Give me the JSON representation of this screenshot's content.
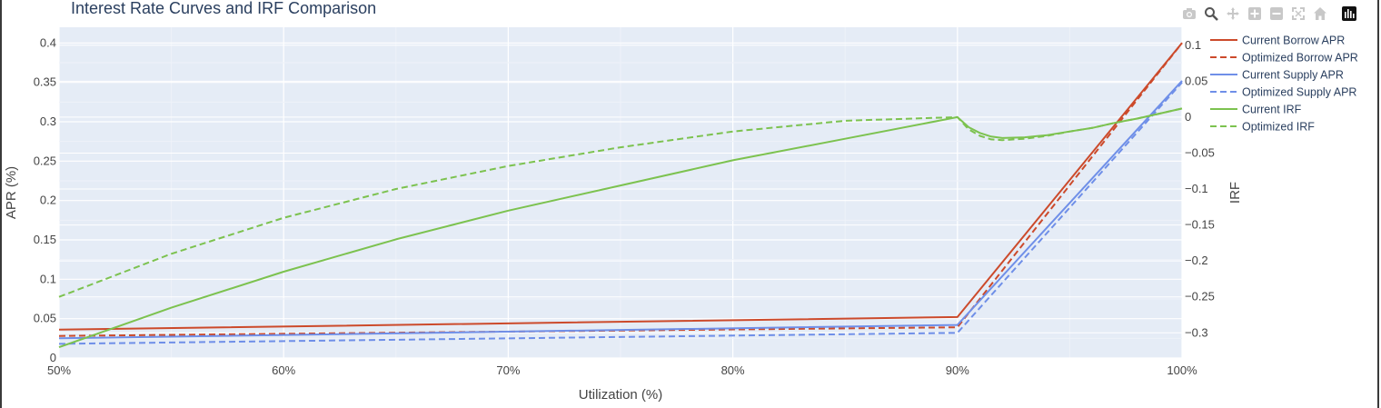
{
  "chart_data": {
    "type": "line",
    "title": "Interest Rate Curves and IRF Comparison",
    "xlabel": "Utilization (%)",
    "ylabel": "APR (%)",
    "y2label": "IRF",
    "xlim": [
      50,
      100
    ],
    "ylim": [
      0,
      0.42
    ],
    "y2lim": [
      -0.335,
      0.125
    ],
    "x_ticks": [
      50,
      60,
      70,
      80,
      90,
      100
    ],
    "x_tick_labels": [
      "50%",
      "60%",
      "70%",
      "80%",
      "90%",
      "100%"
    ],
    "y_ticks": [
      0,
      0.05,
      0.1,
      0.15,
      0.2,
      0.25,
      0.3,
      0.35,
      0.4
    ],
    "y_tick_labels": [
      "0",
      "0.05",
      "0.1",
      "0.15",
      "0.2",
      "0.25",
      "0.3",
      "0.35",
      "0.4"
    ],
    "y2_ticks": [
      0.1,
      0.05,
      0,
      -0.05,
      -0.1,
      -0.15,
      -0.2,
      -0.25,
      -0.3
    ],
    "y2_tick_labels": [
      "0.1",
      "0.05",
      "0",
      "−0.05",
      "−0.1",
      "−0.15",
      "−0.2",
      "−0.25",
      "−0.3"
    ],
    "grid": true,
    "legend_position": "right",
    "series": [
      {
        "name": "Current Borrow APR",
        "axis": "y",
        "color": "#cc4a2b",
        "dash": false,
        "x": [
          50,
          90,
          100
        ],
        "y": [
          0.036,
          0.052,
          0.4
        ]
      },
      {
        "name": "Optimized Borrow APR",
        "axis": "y",
        "color": "#cc4a2b",
        "dash": true,
        "x": [
          50,
          90,
          100
        ],
        "y": [
          0.028,
          0.039,
          0.4
        ]
      },
      {
        "name": "Current Supply APR",
        "axis": "y",
        "color": "#6f8fe8",
        "dash": false,
        "x": [
          50,
          90,
          100
        ],
        "y": [
          0.025,
          0.042,
          0.352
        ]
      },
      {
        "name": "Optimized Supply APR",
        "axis": "y",
        "color": "#6f8fe8",
        "dash": true,
        "x": [
          50,
          90,
          100
        ],
        "y": [
          0.018,
          0.032,
          0.35
        ]
      },
      {
        "name": "Current IRF",
        "axis": "y2",
        "color": "#7cc24f",
        "dash": false,
        "x": [
          50,
          55,
          60,
          65,
          70,
          75,
          80,
          85,
          90,
          90.5,
          91,
          91.5,
          92,
          93,
          94,
          95,
          96,
          97,
          98,
          99,
          100
        ],
        "y": [
          -0.32,
          -0.265,
          -0.215,
          -0.17,
          -0.13,
          -0.095,
          -0.06,
          -0.03,
          0.0,
          -0.014,
          -0.022,
          -0.027,
          -0.029,
          -0.028,
          -0.025,
          -0.02,
          -0.015,
          -0.008,
          -0.002,
          0.005,
          0.012
        ]
      },
      {
        "name": "Optimized IRF",
        "axis": "y2",
        "color": "#7cc24f",
        "dash": true,
        "x": [
          50,
          55,
          60,
          65,
          70,
          75,
          80,
          85,
          90,
          90.5,
          91,
          91.5,
          92,
          93,
          94,
          95,
          96,
          97,
          98,
          99,
          100
        ],
        "y": [
          -0.25,
          -0.19,
          -0.14,
          -0.1,
          -0.068,
          -0.042,
          -0.02,
          -0.005,
          0.0,
          -0.017,
          -0.026,
          -0.031,
          -0.032,
          -0.03,
          -0.026,
          -0.02,
          -0.015,
          -0.008,
          -0.002,
          0.005,
          0.012
        ]
      }
    ]
  },
  "modebar": {
    "icons": [
      "camera-icon",
      "zoom-icon",
      "pan-icon",
      "zoom-in-icon",
      "zoom-out-icon",
      "autoscale-icon",
      "reset-axes-icon",
      "plotly-logo-icon"
    ]
  }
}
